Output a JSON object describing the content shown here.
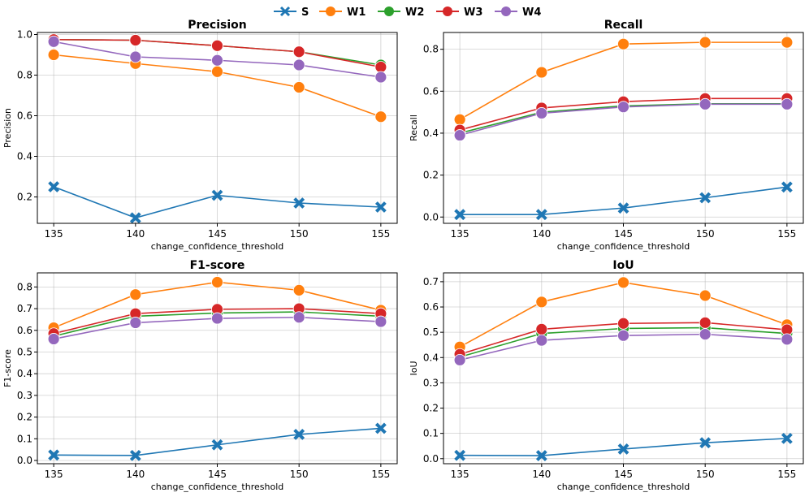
{
  "legend": {
    "placement": "top-center",
    "entries": [
      {
        "name": "S",
        "color": "#1f77b4",
        "marker": "x"
      },
      {
        "name": "W1",
        "color": "#ff7f0e",
        "marker": "o"
      },
      {
        "name": "W2",
        "color": "#2ca02c",
        "marker": "o"
      },
      {
        "name": "W3",
        "color": "#d62728",
        "marker": "o"
      },
      {
        "name": "W4",
        "color": "#9467bd",
        "marker": "o"
      }
    ]
  },
  "chart_data": [
    {
      "type": "line",
      "title": "Precision",
      "xlabel": "change_confidence_threshold",
      "ylabel": "Precision",
      "x": [
        135,
        140,
        145,
        150,
        155
      ],
      "xticks": [
        135,
        140,
        145,
        150,
        155
      ],
      "xlim": [
        134,
        156
      ],
      "ylim": [
        0.07,
        1.01
      ],
      "yticks": [
        0.2,
        0.4,
        0.6,
        0.8,
        1.0
      ],
      "ytick_labels": [
        "0.2",
        "0.4",
        "0.6",
        "0.8",
        "1.0"
      ],
      "grid": true,
      "series": [
        {
          "name": "S",
          "values": [
            0.25,
            0.097,
            0.208,
            0.17,
            0.15
          ]
        },
        {
          "name": "W1",
          "values": [
            0.9,
            0.857,
            0.817,
            0.74,
            0.595
          ]
        },
        {
          "name": "W2",
          "values": [
            0.975,
            0.972,
            0.945,
            0.915,
            0.85
          ]
        },
        {
          "name": "W3",
          "values": [
            0.975,
            0.972,
            0.945,
            0.915,
            0.84
          ]
        },
        {
          "name": "W4",
          "values": [
            0.965,
            0.89,
            0.873,
            0.85,
            0.79
          ]
        }
      ]
    },
    {
      "type": "line",
      "title": "Recall",
      "xlabel": "change_confidence_threshold",
      "ylabel": "Recall",
      "x": [
        135,
        140,
        145,
        150,
        155
      ],
      "xticks": [
        135,
        140,
        145,
        150,
        155
      ],
      "xlim": [
        134,
        156
      ],
      "ylim": [
        -0.03,
        0.88
      ],
      "yticks": [
        0.0,
        0.2,
        0.4,
        0.6,
        0.8
      ],
      "ytick_labels": [
        "0.0",
        "0.2",
        "0.4",
        "0.6",
        "0.8"
      ],
      "grid": true,
      "series": [
        {
          "name": "S",
          "values": [
            0.012,
            0.012,
            0.043,
            0.092,
            0.143
          ]
        },
        {
          "name": "W1",
          "values": [
            0.465,
            0.69,
            0.825,
            0.833,
            0.833
          ]
        },
        {
          "name": "W2",
          "values": [
            0.4,
            0.5,
            0.53,
            0.54,
            0.54
          ]
        },
        {
          "name": "W3",
          "values": [
            0.415,
            0.52,
            0.55,
            0.565,
            0.565
          ]
        },
        {
          "name": "W4",
          "values": [
            0.39,
            0.495,
            0.525,
            0.538,
            0.538
          ]
        }
      ]
    },
    {
      "type": "line",
      "title": "F1-score",
      "xlabel": "change_confidence_threshold",
      "ylabel": "F1-score",
      "x": [
        135,
        140,
        145,
        150,
        155
      ],
      "xticks": [
        135,
        140,
        145,
        150,
        155
      ],
      "xlim": [
        134,
        156
      ],
      "ylim": [
        -0.015,
        0.865
      ],
      "yticks": [
        0.0,
        0.1,
        0.2,
        0.3,
        0.4,
        0.5,
        0.6,
        0.7,
        0.8
      ],
      "ytick_labels": [
        "0.0",
        "0.1",
        "0.2",
        "0.3",
        "0.4",
        "0.5",
        "0.6",
        "0.7",
        "0.8"
      ],
      "grid": true,
      "series": [
        {
          "name": "S",
          "values": [
            0.025,
            0.023,
            0.072,
            0.12,
            0.148
          ]
        },
        {
          "name": "W1",
          "values": [
            0.612,
            0.765,
            0.822,
            0.785,
            0.693
          ]
        },
        {
          "name": "W2",
          "values": [
            0.573,
            0.665,
            0.68,
            0.685,
            0.665
          ]
        },
        {
          "name": "W3",
          "values": [
            0.585,
            0.677,
            0.697,
            0.7,
            0.677
          ]
        },
        {
          "name": "W4",
          "values": [
            0.56,
            0.635,
            0.655,
            0.66,
            0.64
          ]
        }
      ]
    },
    {
      "type": "line",
      "title": "IoU",
      "xlabel": "change_confidence_threshold",
      "ylabel": "IoU",
      "x": [
        135,
        140,
        145,
        150,
        155
      ],
      "xticks": [
        135,
        140,
        145,
        150,
        155
      ],
      "xlim": [
        134,
        156
      ],
      "ylim": [
        -0.02,
        0.735
      ],
      "yticks": [
        0.0,
        0.1,
        0.2,
        0.3,
        0.4,
        0.5,
        0.6,
        0.7
      ],
      "ytick_labels": [
        "0.0",
        "0.1",
        "0.2",
        "0.3",
        "0.4",
        "0.5",
        "0.6",
        "0.7"
      ],
      "grid": true,
      "series": [
        {
          "name": "S",
          "values": [
            0.013,
            0.012,
            0.038,
            0.063,
            0.08
          ]
        },
        {
          "name": "W1",
          "values": [
            0.442,
            0.62,
            0.697,
            0.645,
            0.53
          ]
        },
        {
          "name": "W2",
          "values": [
            0.402,
            0.495,
            0.515,
            0.518,
            0.495
          ]
        },
        {
          "name": "W3",
          "values": [
            0.413,
            0.512,
            0.535,
            0.538,
            0.51
          ]
        },
        {
          "name": "W4",
          "values": [
            0.39,
            0.468,
            0.487,
            0.492,
            0.472
          ]
        }
      ]
    }
  ]
}
